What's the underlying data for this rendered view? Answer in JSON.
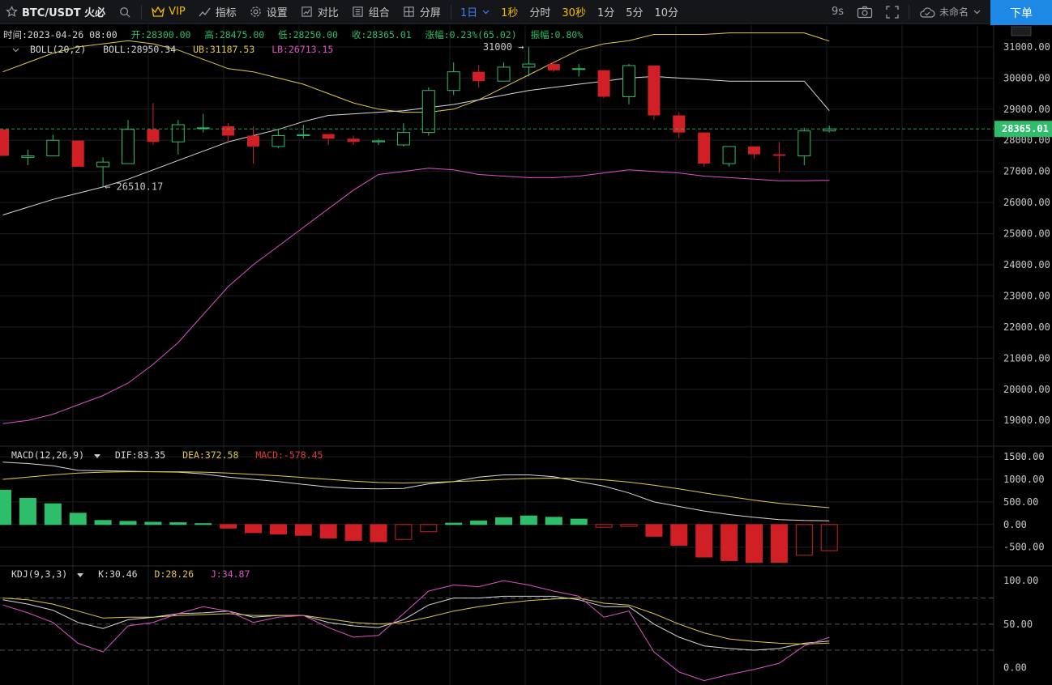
{
  "toolbar": {
    "symbol": "BTC/USDT 火必",
    "vip": "VIP",
    "indicators": "指标",
    "settings": "设置",
    "compare": "对比",
    "combine": "组合",
    "split": "分屏",
    "intervals": [
      "1日",
      "1秒",
      "分时",
      "30秒",
      "1分",
      "5分",
      "10分"
    ],
    "active_interval": "1日",
    "countdown": "9s",
    "layout_name": "未命名",
    "order_button": "下单"
  },
  "ohlc_info": {
    "time": "时间:2023-04-26 08:00",
    "open": "开:28300.00",
    "high": "高:28475.00",
    "low": "低:28250.00",
    "close": "收:28365.01",
    "change": "涨幅:0.23%(65.02)",
    "amplitude": "振幅:0.80%"
  },
  "boll_info": {
    "name": "BOLL(20,2)",
    "mid": "BOLL:28950.34",
    "ub": "UB:31187.53",
    "lb": "LB:26713.15"
  },
  "macd_info": {
    "name": "MACD(12,26,9)",
    "dif": "DIF:83.35",
    "dea": "DEA:372.58",
    "macd": "MACD:-578.45"
  },
  "kdj_info": {
    "name": "KDJ(9,3,3)",
    "k": "K:30.46",
    "d": "D:28.26",
    "j": "J:34.87"
  },
  "colors": {
    "up": "#2ebd6b",
    "down": "#d11f26",
    "boll_mid": "#d8d8d8",
    "boll_ub": "#e3c84c",
    "boll_lb": "#e052c8",
    "price_tag": "#2ebd6b",
    "accent": "#1e88e5"
  },
  "chart_data": [
    {
      "type": "candlestick",
      "title": "BTC/USDT 1日",
      "ylim": [
        18200,
        31700
      ],
      "yticks": [
        19000,
        20000,
        21000,
        22000,
        23000,
        24000,
        25000,
        26000,
        27000,
        28000,
        29000,
        30000,
        31000
      ],
      "last_price": "28365.01",
      "annotations": [
        {
          "text": "26510.17",
          "value": 26510.17
        },
        {
          "text": "31000",
          "value": 31000
        }
      ],
      "candles": [
        {
          "o": 28350,
          "h": 28350,
          "l": 27500,
          "c": 27500
        },
        {
          "o": 27450,
          "h": 27700,
          "l": 27200,
          "c": 27500
        },
        {
          "o": 27500,
          "h": 28180,
          "l": 27500,
          "c": 28000
        },
        {
          "o": 27990,
          "h": 27990,
          "l": 27150,
          "c": 27150
        },
        {
          "o": 27150,
          "h": 27450,
          "l": 26510.17,
          "c": 27300
        },
        {
          "o": 27250,
          "h": 28650,
          "l": 27250,
          "c": 28350
        },
        {
          "o": 28350,
          "h": 29200,
          "l": 27850,
          "c": 27950
        },
        {
          "o": 27950,
          "h": 28650,
          "l": 27550,
          "c": 28500
        },
        {
          "o": 28400,
          "h": 28850,
          "l": 28250,
          "c": 28400
        },
        {
          "o": 28450,
          "h": 28550,
          "l": 27900,
          "c": 28150
        },
        {
          "o": 28150,
          "h": 28450,
          "l": 27250,
          "c": 27800
        },
        {
          "o": 27800,
          "h": 28350,
          "l": 27750,
          "c": 28150
        },
        {
          "o": 28150,
          "h": 28500,
          "l": 28050,
          "c": 28180
        },
        {
          "o": 28200,
          "h": 28200,
          "l": 27850,
          "c": 28050
        },
        {
          "o": 28050,
          "h": 28150,
          "l": 27850,
          "c": 27950
        },
        {
          "o": 27950,
          "h": 28050,
          "l": 27850,
          "c": 27980
        },
        {
          "o": 27850,
          "h": 28550,
          "l": 27800,
          "c": 28250
        },
        {
          "o": 28250,
          "h": 29700,
          "l": 28150,
          "c": 29600
        },
        {
          "o": 29600,
          "h": 30500,
          "l": 29450,
          "c": 30200
        },
        {
          "o": 30200,
          "h": 30400,
          "l": 29700,
          "c": 29900
        },
        {
          "o": 29900,
          "h": 30500,
          "l": 29900,
          "c": 30350
        },
        {
          "o": 30350,
          "h": 31000,
          "l": 30050,
          "c": 30450
        },
        {
          "o": 30450,
          "h": 30550,
          "l": 30200,
          "c": 30250
        },
        {
          "o": 30300,
          "h": 30450,
          "l": 30050,
          "c": 30300
        },
        {
          "o": 30250,
          "h": 30250,
          "l": 29350,
          "c": 29400
        },
        {
          "o": 29400,
          "h": 30450,
          "l": 29150,
          "c": 30400
        },
        {
          "o": 30400,
          "h": 30400,
          "l": 28650,
          "c": 28800
        },
        {
          "o": 28800,
          "h": 28900,
          "l": 28050,
          "c": 28250
        },
        {
          "o": 28250,
          "h": 28250,
          "l": 27150,
          "c": 27250
        },
        {
          "o": 27250,
          "h": 27800,
          "l": 27150,
          "c": 27800
        },
        {
          "o": 27800,
          "h": 27800,
          "l": 27400,
          "c": 27550
        },
        {
          "o": 27550,
          "h": 27950,
          "l": 26950,
          "c": 27500
        },
        {
          "o": 27500,
          "h": 28400,
          "l": 27200,
          "c": 28300
        },
        {
          "o": 28300,
          "h": 28475,
          "l": 28250,
          "c": 28365.01
        }
      ],
      "boll_mid": [
        25600,
        25850,
        26100,
        26300,
        26500,
        26750,
        27050,
        27350,
        27650,
        27950,
        28150,
        28350,
        28600,
        28800,
        28850,
        28900,
        28950,
        29050,
        29150,
        29300,
        29450,
        29600,
        29700,
        29800,
        29900,
        30000,
        30050,
        30000,
        29950,
        29900,
        29900,
        29900,
        29900,
        28950.34
      ],
      "boll_ub": [
        30200,
        30500,
        30800,
        31000,
        31100,
        31200,
        31100,
        30900,
        30600,
        30300,
        30200,
        30000,
        29800,
        29500,
        29200,
        29000,
        28900,
        28900,
        29000,
        29300,
        29700,
        30100,
        30500,
        30900,
        31100,
        31200,
        31400,
        31400,
        31400,
        31450,
        31450,
        31450,
        31450,
        31187.53
      ],
      "boll_lb": [
        18900,
        19000,
        19200,
        19500,
        19800,
        20200,
        20800,
        21500,
        22400,
        23300,
        24000,
        24600,
        25200,
        25800,
        26400,
        26900,
        27000,
        27100,
        27050,
        26900,
        26850,
        26800,
        26800,
        26850,
        26950,
        27050,
        27000,
        26950,
        26850,
        26800,
        26750,
        26700,
        26700,
        26713.15
      ]
    },
    {
      "type": "macd",
      "title": "MACD(12,26,9)",
      "ylim": [
        -900,
        1700
      ],
      "yticks": [
        -500,
        0,
        500,
        1000,
        1500
      ],
      "dif": [
        1380,
        1350,
        1300,
        1200,
        1190,
        1180,
        1170,
        1160,
        1120,
        1050,
        1000,
        950,
        890,
        830,
        800,
        790,
        800,
        900,
        950,
        1050,
        1100,
        1100,
        1060,
        950,
        850,
        700,
        500,
        400,
        300,
        220,
        160,
        110,
        90,
        83.35
      ],
      "dea": [
        1000,
        1050,
        1100,
        1140,
        1160,
        1170,
        1170,
        1170,
        1160,
        1140,
        1110,
        1080,
        1040,
        1000,
        960,
        930,
        920,
        930,
        950,
        970,
        1000,
        1020,
        1030,
        1020,
        990,
        940,
        870,
        790,
        700,
        620,
        540,
        470,
        420,
        372.58
      ],
      "histogram": [
        760,
        580,
        460,
        250,
        90,
        70,
        50,
        40,
        20,
        -80,
        -180,
        -210,
        -240,
        -300,
        -350,
        -380,
        -330,
        -160,
        30,
        80,
        150,
        190,
        160,
        120,
        -60,
        -40,
        -260,
        -460,
        -720,
        -800,
        -840,
        -840,
        -680,
        -578.45
      ]
    },
    {
      "type": "kdj",
      "title": "KDJ(9,3,3)",
      "ylim": [
        -20,
        115
      ],
      "yticks": [
        0,
        50,
        100
      ],
      "k": [
        78,
        73,
        66,
        52,
        45,
        55,
        58,
        62,
        63,
        65,
        58,
        60,
        60,
        52,
        48,
        46,
        55,
        72,
        80,
        80,
        82,
        82,
        82,
        78,
        70,
        70,
        50,
        35,
        25,
        22,
        20,
        22,
        28,
        30.46
      ],
      "d": [
        80,
        78,
        73,
        65,
        57,
        58,
        58,
        60,
        61,
        62,
        60,
        60,
        60,
        56,
        52,
        50,
        52,
        58,
        65,
        70,
        74,
        77,
        79,
        80,
        74,
        72,
        62,
        50,
        40,
        33,
        30,
        28,
        27,
        28.26
      ],
      "j": [
        72,
        63,
        52,
        28,
        18,
        48,
        52,
        62,
        70,
        65,
        52,
        58,
        60,
        46,
        35,
        37,
        62,
        88,
        95,
        93,
        100,
        95,
        88,
        82,
        58,
        65,
        18,
        -5,
        -15,
        -8,
        -2,
        5,
        25,
        34.87
      ]
    }
  ]
}
